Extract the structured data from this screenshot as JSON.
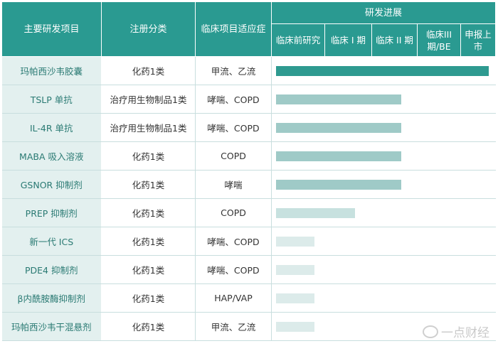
{
  "header": {
    "name": "主要研发项目",
    "category": "注册分类",
    "indication": "临床项目适应症",
    "progress": "研发进展",
    "stages": [
      "临床前研究",
      "临床 I 期",
      "临床 II 期",
      "临床III期/BE",
      "申报上市"
    ]
  },
  "rows": [
    {
      "name": "玛帕西沙韦胶囊",
      "category": "化药1类",
      "indication": "甲流、乙流",
      "progress": 1.0
    },
    {
      "name": "TSLP 单抗",
      "category": "治疗用生物制品1类",
      "indication": "哮喘、COPD",
      "progress": 0.59
    },
    {
      "name": "IL-4R 单抗",
      "category": "治疗用生物制品1类",
      "indication": "哮喘、COPD",
      "progress": 0.59
    },
    {
      "name": "MABA 吸入溶液",
      "category": "化药1类",
      "indication": "COPD",
      "progress": 0.59
    },
    {
      "name": "GSNOR 抑制剂",
      "category": "化药1类",
      "indication": "哮喘",
      "progress": 0.59
    },
    {
      "name": "PREP 抑制剂",
      "category": "化药1类",
      "indication": "COPD",
      "progress": 0.37
    },
    {
      "name": "新一代 ICS",
      "category": "化药1类",
      "indication": "哮喘、COPD",
      "progress": 0.18
    },
    {
      "name": "PDE4 抑制剂",
      "category": "化药1类",
      "indication": "哮喘、COPD",
      "progress": 0.18
    },
    {
      "name": "β内酰胺酶抑制剂",
      "category": "化药1类",
      "indication": "HAP/VAP",
      "progress": 0.18
    },
    {
      "name": "玛帕西沙韦干混悬剂",
      "category": "化药1类",
      "indication": "甲流、乙流",
      "progress": 0.18
    }
  ],
  "watermark": "一点财经",
  "colors": {
    "header": "#2a9a91",
    "bar_full": "#2e9a90",
    "bar_mid": "#9fcac7",
    "bar_low": "#c7e1df",
    "bar_min": "#dcebea"
  }
}
